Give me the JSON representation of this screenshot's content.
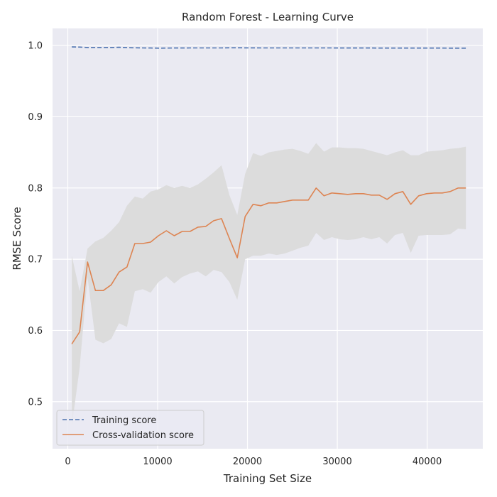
{
  "chart_data": {
    "type": "line",
    "title": "Random Forest - Learning Curve",
    "xlabel": "Training Set Size",
    "ylabel": "RMSE Score",
    "xlim": [
      -1700,
      46200
    ],
    "ylim": [
      0.434,
      1.024
    ],
    "xticks": [
      0,
      10000,
      20000,
      30000,
      40000
    ],
    "xtick_labels": [
      "0",
      "10000",
      "20000",
      "30000",
      "40000"
    ],
    "yticks": [
      0.5,
      0.6,
      0.7,
      0.8,
      0.9,
      1.0
    ],
    "ytick_labels": [
      "0.5",
      "0.6",
      "0.7",
      "0.8",
      "0.9",
      "1.0"
    ],
    "grid": true,
    "legend_position": "lower-left",
    "colors": {
      "plot_bg": "#EAEAF2",
      "grid": "#FFFFFF",
      "training": "#4C72B0",
      "cv": "#DD8452",
      "band": "#DCDCDC"
    },
    "x": [
      443,
      1320,
      2198,
      3075,
      3953,
      4830,
      5708,
      6585,
      7463,
      8340,
      9218,
      10095,
      10973,
      11850,
      12728,
      13605,
      14483,
      15360,
      16238,
      17115,
      17993,
      18870,
      19748,
      20625,
      21503,
      22380,
      23258,
      24135,
      25013,
      25890,
      26768,
      27645,
      28523,
      29400,
      30278,
      31155,
      32033,
      32910,
      33788,
      34665,
      35543,
      36420,
      37298,
      38175,
      39053,
      39930,
      40808,
      41685,
      42563,
      43440,
      44318
    ],
    "series": [
      {
        "name": "Training score",
        "style": "dashed",
        "values": [
          0.998,
          0.9978,
          0.9972,
          0.9972,
          0.9972,
          0.9972,
          0.9975,
          0.997,
          0.9968,
          0.9966,
          0.9965,
          0.9963,
          0.9964,
          0.9965,
          0.9965,
          0.9966,
          0.9966,
          0.9966,
          0.9966,
          0.9966,
          0.9968,
          0.9968,
          0.9967,
          0.9967,
          0.9966,
          0.9966,
          0.9966,
          0.9966,
          0.9966,
          0.9966,
          0.9966,
          0.9966,
          0.9966,
          0.9966,
          0.9965,
          0.9965,
          0.9965,
          0.9965,
          0.9965,
          0.9964,
          0.9964,
          0.9964,
          0.9964,
          0.9964,
          0.9964,
          0.9964,
          0.9964,
          0.9964,
          0.9963,
          0.9963,
          0.9963
        ]
      },
      {
        "name": "Cross-validation score",
        "style": "solid",
        "values": [
          0.581,
          0.598,
          0.696,
          0.656,
          0.656,
          0.664,
          0.682,
          0.689,
          0.722,
          0.722,
          0.724,
          0.733,
          0.74,
          0.733,
          0.739,
          0.739,
          0.745,
          0.746,
          0.754,
          0.757,
          0.729,
          0.702,
          0.76,
          0.777,
          0.775,
          0.779,
          0.779,
          0.781,
          0.783,
          0.783,
          0.783,
          0.8,
          0.789,
          0.793,
          0.792,
          0.791,
          0.792,
          0.792,
          0.79,
          0.79,
          0.784,
          0.792,
          0.795,
          0.777,
          0.789,
          0.792,
          0.793,
          0.793,
          0.795,
          0.8,
          0.8
        ],
        "band_upper": [
          0.705,
          0.655,
          0.715,
          0.725,
          0.73,
          0.74,
          0.752,
          0.775,
          0.788,
          0.785,
          0.795,
          0.798,
          0.804,
          0.8,
          0.803,
          0.8,
          0.805,
          0.813,
          0.822,
          0.832,
          0.79,
          0.762,
          0.82,
          0.849,
          0.845,
          0.85,
          0.852,
          0.854,
          0.855,
          0.852,
          0.848,
          0.863,
          0.851,
          0.857,
          0.857,
          0.856,
          0.856,
          0.855,
          0.852,
          0.849,
          0.846,
          0.85,
          0.853,
          0.846,
          0.846,
          0.851,
          0.852,
          0.853,
          0.855,
          0.856,
          0.858
        ],
        "band_lower": [
          0.465,
          0.548,
          0.675,
          0.587,
          0.582,
          0.588,
          0.61,
          0.605,
          0.655,
          0.658,
          0.653,
          0.668,
          0.676,
          0.666,
          0.675,
          0.68,
          0.683,
          0.676,
          0.685,
          0.682,
          0.668,
          0.643,
          0.7,
          0.705,
          0.705,
          0.708,
          0.706,
          0.708,
          0.712,
          0.716,
          0.719,
          0.737,
          0.727,
          0.731,
          0.728,
          0.727,
          0.728,
          0.731,
          0.728,
          0.731,
          0.722,
          0.734,
          0.737,
          0.709,
          0.733,
          0.734,
          0.734,
          0.734,
          0.735,
          0.743,
          0.742
        ]
      }
    ]
  }
}
